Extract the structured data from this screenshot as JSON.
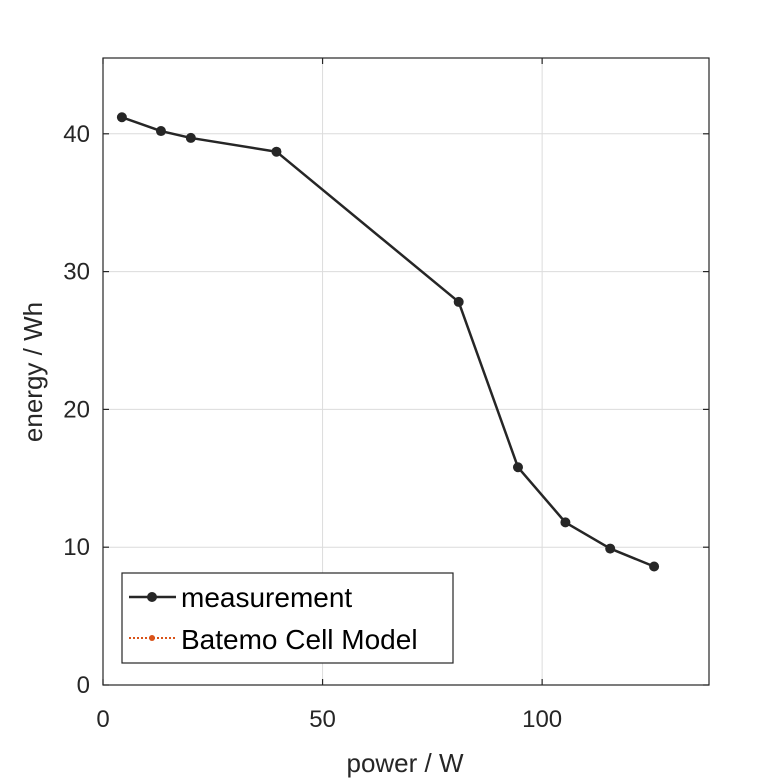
{
  "chart_data": {
    "type": "line",
    "xlabel": "power / W",
    "ylabel": "energy / Wh",
    "xlim": [
      0,
      138
    ],
    "ylim": [
      0,
      45.5
    ],
    "xticks": [
      0,
      50,
      100
    ],
    "yticks": [
      0,
      10,
      20,
      30,
      40
    ],
    "grid": true,
    "legend_position": "bottom-left",
    "series": [
      {
        "name": "measurement",
        "color": "#262626",
        "line_style": "solid",
        "marker": "circle",
        "x": [
          4.3,
          13.2,
          20.0,
          39.5,
          81.0,
          94.5,
          105.3,
          115.5,
          125.5
        ],
        "y": [
          41.2,
          40.2,
          39.7,
          38.7,
          27.8,
          15.8,
          11.8,
          9.9,
          8.6
        ]
      },
      {
        "name": "Batemo Cell Model",
        "color": "#D95319",
        "line_style": "dotted",
        "marker": "dot",
        "x": [],
        "y": []
      }
    ]
  }
}
